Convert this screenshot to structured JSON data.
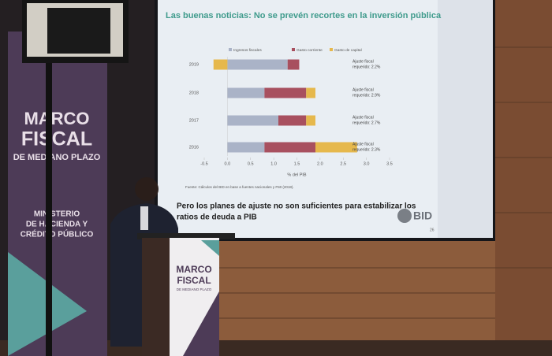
{
  "banner": {
    "lines": [
      "MARCO",
      "FISCAL",
      "DE MEDIANO PLAZO"
    ],
    "ministry": [
      "MINISTERIO",
      "DE HACIENDA Y",
      "CRÉDITO PÚBLICO"
    ]
  },
  "podium": {
    "lines": [
      "MARCO",
      "FISCAL",
      "DE MEDIANO PLAZO"
    ]
  },
  "slide": {
    "title": "Las buenas noticias: No se prevén recortes en la inversión pública",
    "chart": {
      "type": "bar",
      "orientation": "horizontal",
      "stacked": true,
      "categories": [
        "2019",
        "2018",
        "2017",
        "2016"
      ],
      "series": [
        {
          "name": "Ingresos fiscales",
          "color": "#aab3c7",
          "values": [
            1.3,
            0.8,
            1.1,
            0.8
          ]
        },
        {
          "name": "Gasto corriente",
          "color": "#a8505f",
          "values": [
            0.25,
            0.9,
            0.6,
            1.1
          ]
        },
        {
          "name": "Gasto de capital",
          "color": "#e6b84c",
          "values": [
            -0.3,
            0.2,
            0.2,
            0.9
          ]
        }
      ],
      "annotations": [
        [
          "Ajuste fiscal",
          "requerido: 2.2%"
        ],
        [
          "Ajuste fiscal",
          "requerido: 2.9%"
        ],
        [
          "Ajuste fiscal",
          "requerido: 2.7%"
        ],
        [
          "Ajuste fiscal",
          "requerido: 2.3%"
        ]
      ],
      "xlim": [
        -0.5,
        3.5
      ],
      "xticks": [
        -0.5,
        {
          "value": 0,
          "label": "0.0"
        },
        0.5,
        {
          "value": 1,
          "label": "1.0"
        },
        1.5,
        {
          "value": 2,
          "label": "2.0"
        },
        2.5,
        {
          "value": 3,
          "label": "3.0"
        },
        3.5
      ],
      "xlabel": "% del PIB"
    },
    "source": "Fuente: Cálculos del BID en base a fuentes nacionales y FMI (2018).",
    "subtitle": [
      "Pero los planes de ajuste no son suficientes para estabilizar los",
      "ratios de deuda a PIB"
    ],
    "logo": "BID",
    "page": "26"
  }
}
